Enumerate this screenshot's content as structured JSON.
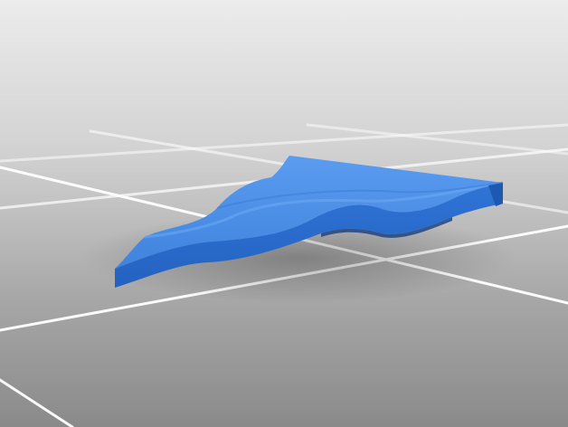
{
  "scene": {
    "subject": "wavy-plate-model",
    "colors": {
      "background_top": "#e9e9e9",
      "background_bottom": "#8d8d8d",
      "floor_grid": "#ffffff",
      "model_top": "#4a8ee6",
      "model_side": "#2b6fd1",
      "model_dark": "#1c4e9c"
    }
  }
}
